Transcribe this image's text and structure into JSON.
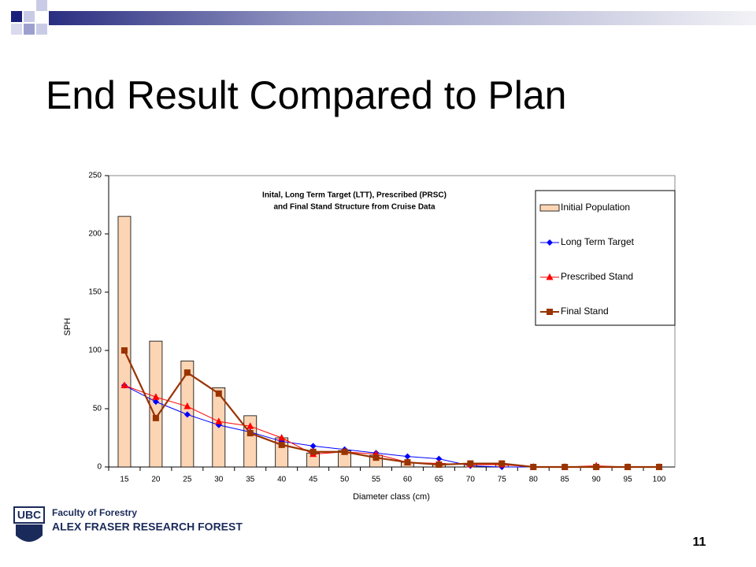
{
  "slide": {
    "title": "End Result Compared to Plan",
    "logo": "UBC",
    "faculty": "Faculty of Forestry",
    "forest": "ALEX FRASER RESEARCH FOREST",
    "page_number": "11"
  },
  "chart_data": {
    "type": "bar",
    "title": [
      "Inital, Long Term Target (LTT), Prescribed (PRSC)",
      "and Final  Stand Structure from Cruise Data"
    ],
    "x_label": "Diameter class (cm)",
    "y_label": "SPH",
    "categories": [
      15,
      20,
      25,
      30,
      35,
      40,
      45,
      50,
      55,
      60,
      65,
      70,
      75,
      80,
      85,
      90,
      95,
      100
    ],
    "ylim": [
      0,
      250
    ],
    "yticks": [
      0,
      50,
      100,
      150,
      200,
      250
    ],
    "legend": "top-right",
    "series": [
      {
        "name": "Initial Population",
        "type": "bar",
        "color": "#fcd5b4",
        "values": [
          215,
          108,
          91,
          68,
          44,
          25,
          12,
          14,
          10,
          4,
          3,
          2,
          2,
          0,
          0,
          0,
          0,
          0
        ]
      },
      {
        "name": "Long Term Target",
        "type": "line",
        "marker": "diamond",
        "color": "#0000ff",
        "values": [
          70,
          56,
          45,
          36,
          30,
          22,
          18,
          15,
          12,
          9,
          7,
          1,
          0,
          0,
          0,
          0,
          0,
          0
        ]
      },
      {
        "name": "Prescribed Stand",
        "type": "line",
        "marker": "triangle",
        "color": "#ff0000",
        "values": [
          70,
          60,
          52,
          39,
          35,
          25,
          11,
          13,
          11,
          4,
          3,
          2,
          2,
          0,
          0,
          1,
          0,
          0
        ]
      },
      {
        "name": "Final Stand",
        "type": "line",
        "marker": "square",
        "color": "#993300",
        "values": [
          100,
          42,
          81,
          63,
          29,
          19,
          13,
          13,
          8,
          4,
          2,
          3,
          3,
          0,
          0,
          0,
          0,
          0
        ]
      }
    ]
  }
}
